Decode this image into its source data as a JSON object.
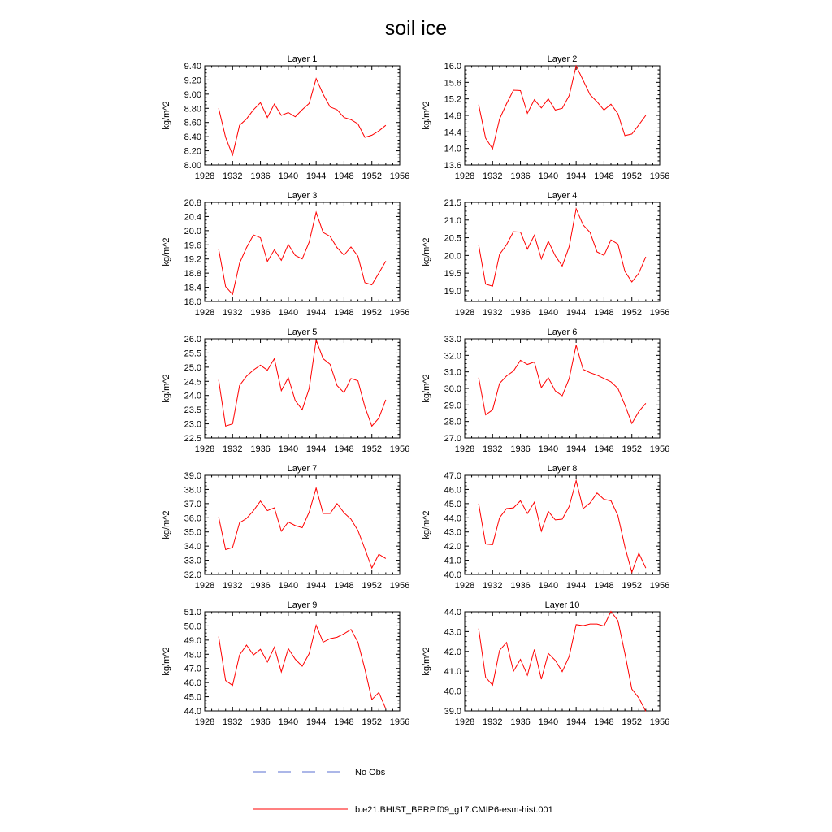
{
  "title": "soil ice",
  "legend": [
    {
      "label": "No Obs",
      "color": "#5a6fd0",
      "dash": "dashed"
    },
    {
      "label": "b.e21.BHIST_BPRP.f09_g17.CMIP6-esm-hist.001",
      "color": "#ff0000",
      "dash": "solid"
    }
  ],
  "colors": {
    "series": "#ff0000",
    "obs": "#5a6fd0",
    "axis": "#000000"
  },
  "chart_data": [
    {
      "type": "line",
      "title": "Layer 1",
      "ylabel": "kg/m^2",
      "xlim": [
        1928,
        1956
      ],
      "ylim": [
        8.0,
        9.4
      ],
      "xticks": [
        1928,
        1932,
        1936,
        1940,
        1944,
        1948,
        1952,
        1956
      ],
      "yticks": [
        "8.00",
        "8.20",
        "8.40",
        "8.60",
        "8.80",
        "9.00",
        "9.20",
        "9.40"
      ],
      "series": [
        {
          "name": "b.e21.BHIST_BPRP.f09_g17.CMIP6-esm-hist.001",
          "x": [
            1930,
            1931,
            1932,
            1933,
            1934,
            1935,
            1936,
            1937,
            1938,
            1939,
            1940,
            1941,
            1942,
            1943,
            1944,
            1945,
            1946,
            1947,
            1948,
            1949,
            1950,
            1951,
            1952,
            1953,
            1954
          ],
          "values": [
            8.8,
            8.39,
            8.14,
            8.56,
            8.65,
            8.78,
            8.88,
            8.67,
            8.86,
            8.7,
            8.74,
            8.68,
            8.78,
            8.87,
            9.22,
            9.0,
            8.82,
            8.78,
            8.67,
            8.64,
            8.58,
            8.39,
            8.42,
            8.48,
            8.56
          ]
        }
      ]
    },
    {
      "type": "line",
      "title": "Layer 2",
      "ylabel": "kg/m^2",
      "xlim": [
        1928,
        1956
      ],
      "ylim": [
        13.6,
        16.0
      ],
      "xticks": [
        1928,
        1932,
        1936,
        1940,
        1944,
        1948,
        1952,
        1956
      ],
      "yticks": [
        "13.6",
        "14.0",
        "14.4",
        "14.8",
        "15.2",
        "15.6",
        "16.0"
      ],
      "series": [
        {
          "name": "b.e21.BHIST_BPRP.f09_g17.CMIP6-esm-hist.001",
          "x": [
            1930,
            1931,
            1932,
            1933,
            1934,
            1935,
            1936,
            1937,
            1938,
            1939,
            1940,
            1941,
            1942,
            1943,
            1944,
            1945,
            1946,
            1947,
            1948,
            1949,
            1950,
            1951,
            1952,
            1953,
            1954
          ],
          "values": [
            15.06,
            14.25,
            13.99,
            14.71,
            15.08,
            15.41,
            15.4,
            14.85,
            15.18,
            14.98,
            15.2,
            14.93,
            14.97,
            15.28,
            16.0,
            15.65,
            15.3,
            15.13,
            14.93,
            15.07,
            14.84,
            14.31,
            14.35,
            14.57,
            14.8
          ]
        }
      ]
    },
    {
      "type": "line",
      "title": "Layer 3",
      "ylabel": "kg/m^2",
      "xlim": [
        1928,
        1956
      ],
      "ylim": [
        18.0,
        20.8
      ],
      "xticks": [
        1928,
        1932,
        1936,
        1940,
        1944,
        1948,
        1952,
        1956
      ],
      "yticks": [
        "18.0",
        "18.4",
        "18.8",
        "19.2",
        "19.6",
        "20.0",
        "20.4",
        "20.8"
      ],
      "series": [
        {
          "name": "b.e21.BHIST_BPRP.f09_g17.CMIP6-esm-hist.001",
          "x": [
            1930,
            1931,
            1932,
            1933,
            1934,
            1935,
            1936,
            1937,
            1938,
            1939,
            1940,
            1941,
            1942,
            1943,
            1944,
            1945,
            1946,
            1947,
            1948,
            1949,
            1950,
            1951,
            1952,
            1953,
            1954
          ],
          "values": [
            19.48,
            18.42,
            18.2,
            19.08,
            19.52,
            19.88,
            19.8,
            19.13,
            19.46,
            19.16,
            19.61,
            19.3,
            19.2,
            19.68,
            20.52,
            19.95,
            19.84,
            19.52,
            19.31,
            19.54,
            19.28,
            18.53,
            18.47,
            18.8,
            19.14
          ]
        }
      ]
    },
    {
      "type": "line",
      "title": "Layer 4",
      "ylabel": "kg/m^2",
      "xlim": [
        1928,
        1956
      ],
      "ylim": [
        18.7,
        21.5
      ],
      "xticks": [
        1928,
        1932,
        1936,
        1940,
        1944,
        1948,
        1952,
        1956
      ],
      "yticks": [
        "19.0",
        "19.5",
        "20.0",
        "20.5",
        "21.0",
        "21.5"
      ],
      "series": [
        {
          "name": "b.e21.BHIST_BPRP.f09_g17.CMIP6-esm-hist.001",
          "x": [
            1930,
            1931,
            1932,
            1933,
            1934,
            1935,
            1936,
            1937,
            1938,
            1939,
            1940,
            1941,
            1942,
            1943,
            1944,
            1945,
            1946,
            1947,
            1948,
            1949,
            1950,
            1951,
            1952,
            1953,
            1954
          ],
          "values": [
            20.3,
            19.19,
            19.13,
            20.03,
            20.3,
            20.67,
            20.66,
            20.18,
            20.57,
            19.9,
            20.4,
            19.99,
            19.7,
            20.25,
            21.32,
            20.86,
            20.65,
            20.1,
            20.0,
            20.44,
            20.32,
            19.55,
            19.25,
            19.5,
            19.96
          ]
        }
      ]
    },
    {
      "type": "line",
      "title": "Layer 5",
      "ylabel": "kg/m^2",
      "xlim": [
        1928,
        1956
      ],
      "ylim": [
        22.5,
        26.0
      ],
      "xticks": [
        1928,
        1932,
        1936,
        1940,
        1944,
        1948,
        1952,
        1956
      ],
      "yticks": [
        "22.5",
        "23.0",
        "23.5",
        "24.0",
        "24.5",
        "25.0",
        "25.5",
        "26.0"
      ],
      "series": [
        {
          "name": "b.e21.BHIST_BPRP.f09_g17.CMIP6-esm-hist.001",
          "x": [
            1930,
            1931,
            1932,
            1933,
            1934,
            1935,
            1936,
            1937,
            1938,
            1939,
            1940,
            1941,
            1942,
            1943,
            1944,
            1945,
            1946,
            1947,
            1948,
            1949,
            1950,
            1951,
            1952,
            1953,
            1954
          ],
          "values": [
            24.55,
            22.92,
            23.0,
            24.35,
            24.68,
            24.9,
            25.07,
            24.89,
            25.3,
            24.17,
            24.63,
            23.82,
            23.5,
            24.25,
            25.96,
            25.3,
            25.1,
            24.35,
            24.1,
            24.6,
            24.52,
            23.6,
            22.92,
            23.2,
            23.85
          ]
        }
      ]
    },
    {
      "type": "line",
      "title": "Layer 6",
      "ylabel": "kg/m^2",
      "xlim": [
        1928,
        1956
      ],
      "ylim": [
        27.0,
        33.0
      ],
      "xticks": [
        1928,
        1932,
        1936,
        1940,
        1944,
        1948,
        1952,
        1956
      ],
      "yticks": [
        "27.0",
        "28.0",
        "29.0",
        "30.0",
        "31.0",
        "32.0",
        "33.0"
      ],
      "series": [
        {
          "name": "b.e21.BHIST_BPRP.f09_g17.CMIP6-esm-hist.001",
          "x": [
            1930,
            1931,
            1932,
            1933,
            1934,
            1935,
            1936,
            1937,
            1938,
            1939,
            1940,
            1941,
            1942,
            1943,
            1944,
            1945,
            1946,
            1947,
            1948,
            1949,
            1950,
            1951,
            1952,
            1953,
            1954
          ],
          "values": [
            30.65,
            28.4,
            28.7,
            30.3,
            30.75,
            31.05,
            31.7,
            31.45,
            31.6,
            30.05,
            30.65,
            29.85,
            29.55,
            30.6,
            32.62,
            31.15,
            30.95,
            30.8,
            30.6,
            30.4,
            30.0,
            29.0,
            27.88,
            28.6,
            29.1
          ]
        }
      ]
    },
    {
      "type": "line",
      "title": "Layer 7",
      "ylabel": "kg/m^2",
      "xlim": [
        1928,
        1956
      ],
      "ylim": [
        32.0,
        39.0
      ],
      "xticks": [
        1928,
        1932,
        1936,
        1940,
        1944,
        1948,
        1952,
        1956
      ],
      "yticks": [
        "32.0",
        "33.0",
        "34.0",
        "35.0",
        "36.0",
        "37.0",
        "38.0",
        "39.0"
      ],
      "series": [
        {
          "name": "b.e21.BHIST_BPRP.f09_g17.CMIP6-esm-hist.001",
          "x": [
            1930,
            1931,
            1932,
            1933,
            1934,
            1935,
            1936,
            1937,
            1938,
            1939,
            1940,
            1941,
            1942,
            1943,
            1944,
            1945,
            1946,
            1947,
            1948,
            1949,
            1950,
            1951,
            1952,
            1953,
            1954
          ],
          "values": [
            36.05,
            33.75,
            33.9,
            35.65,
            35.95,
            36.5,
            37.18,
            36.5,
            36.7,
            35.05,
            35.7,
            35.45,
            35.3,
            36.4,
            38.1,
            36.3,
            36.3,
            37.0,
            36.35,
            35.9,
            35.1,
            33.8,
            32.45,
            33.42,
            33.12
          ]
        }
      ]
    },
    {
      "type": "line",
      "title": "Layer 8",
      "ylabel": "kg/m^2",
      "xlim": [
        1928,
        1956
      ],
      "ylim": [
        40.0,
        47.0
      ],
      "xticks": [
        1928,
        1932,
        1936,
        1940,
        1944,
        1948,
        1952,
        1956
      ],
      "yticks": [
        "40.0",
        "41.0",
        "42.0",
        "43.0",
        "44.0",
        "45.0",
        "46.0",
        "47.0"
      ],
      "series": [
        {
          "name": "b.e21.BHIST_BPRP.f09_g17.CMIP6-esm-hist.001",
          "x": [
            1930,
            1931,
            1932,
            1933,
            1934,
            1935,
            1936,
            1937,
            1938,
            1939,
            1940,
            1941,
            1942,
            1943,
            1944,
            1945,
            1946,
            1947,
            1948,
            1949,
            1950,
            1951,
            1952,
            1953,
            1954
          ],
          "values": [
            45.0,
            42.15,
            42.1,
            44.0,
            44.65,
            44.7,
            45.2,
            44.3,
            45.1,
            43.05,
            44.45,
            43.85,
            43.9,
            44.8,
            46.62,
            44.65,
            45.05,
            45.75,
            45.3,
            45.2,
            44.15,
            41.95,
            40.15,
            41.5,
            40.45
          ]
        }
      ]
    },
    {
      "type": "line",
      "title": "Layer 9",
      "ylabel": "kg/m^2",
      "xlim": [
        1928,
        1956
      ],
      "ylim": [
        44.0,
        51.0
      ],
      "xticks": [
        1928,
        1932,
        1936,
        1940,
        1944,
        1948,
        1952,
        1956
      ],
      "yticks": [
        "44.0",
        "45.0",
        "46.0",
        "47.0",
        "48.0",
        "49.0",
        "50.0",
        "51.0"
      ],
      "series": [
        {
          "name": "b.e21.BHIST_BPRP.f09_g17.CMIP6-esm-hist.001",
          "x": [
            1930,
            1931,
            1932,
            1933,
            1934,
            1935,
            1936,
            1937,
            1938,
            1939,
            1940,
            1941,
            1942,
            1943,
            1944,
            1945,
            1946,
            1947,
            1948,
            1949,
            1950,
            1951,
            1952,
            1953,
            1954
          ],
          "values": [
            49.25,
            46.15,
            45.8,
            47.95,
            48.65,
            47.95,
            48.35,
            47.45,
            48.5,
            46.75,
            48.4,
            47.65,
            47.15,
            48.05,
            50.05,
            48.85,
            49.1,
            49.2,
            49.45,
            49.75,
            48.85,
            46.95,
            44.8,
            45.3,
            44.15
          ]
        }
      ]
    },
    {
      "type": "line",
      "title": "Layer 10",
      "ylabel": "kg/m^2",
      "xlim": [
        1928,
        1956
      ],
      "ylim": [
        39.0,
        44.0
      ],
      "xticks": [
        1928,
        1932,
        1936,
        1940,
        1944,
        1948,
        1952,
        1956
      ],
      "yticks": [
        "39.0",
        "40.0",
        "41.0",
        "42.0",
        "43.0",
        "44.0"
      ],
      "series": [
        {
          "name": "b.e21.BHIST_BPRP.f09_g17.CMIP6-esm-hist.001",
          "x": [
            1930,
            1931,
            1932,
            1933,
            1934,
            1935,
            1936,
            1937,
            1938,
            1939,
            1940,
            1941,
            1942,
            1943,
            1944,
            1945,
            1946,
            1947,
            1948,
            1949,
            1950,
            1951,
            1952,
            1953,
            1954
          ],
          "values": [
            43.15,
            40.7,
            40.3,
            42.05,
            42.45,
            41.0,
            41.6,
            40.8,
            42.1,
            40.6,
            41.9,
            41.55,
            40.98,
            41.75,
            43.35,
            43.3,
            43.38,
            43.38,
            43.28,
            44.02,
            43.55,
            41.9,
            40.1,
            39.65,
            38.98
          ]
        }
      ]
    }
  ]
}
